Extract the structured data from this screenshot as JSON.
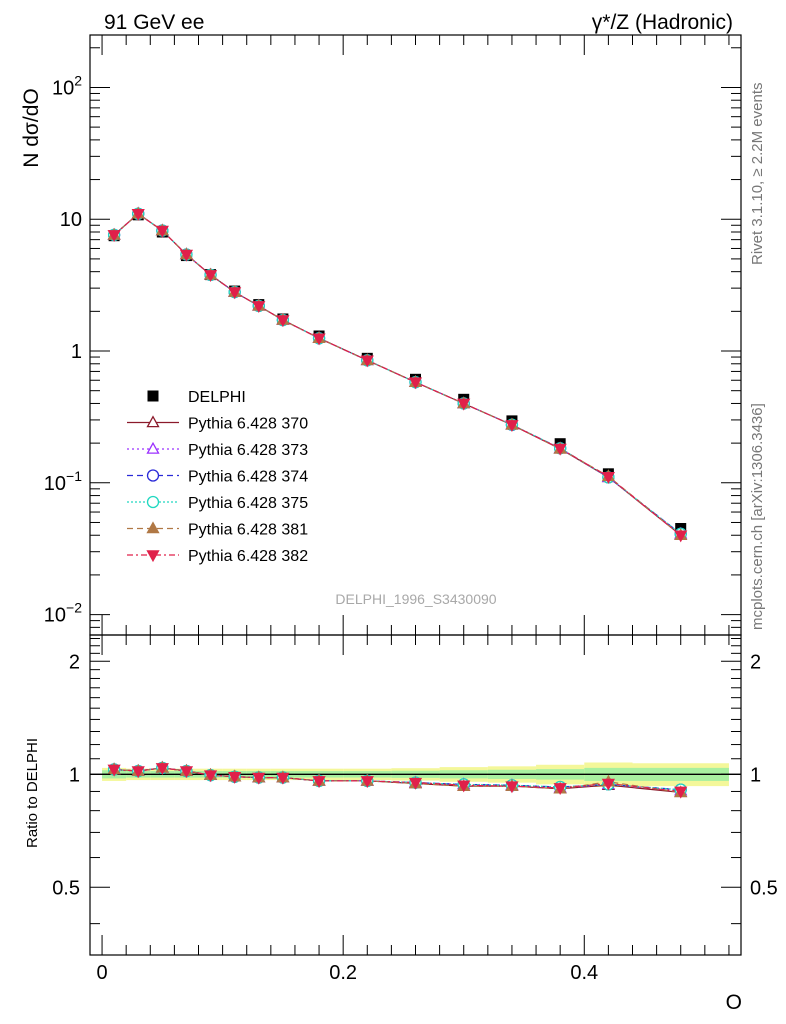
{
  "header": {
    "left_title": "91 GeV ee",
    "right_title": "γ*/Z (Hadronic)"
  },
  "side_labels": {
    "top": "Rivet 3.1.10, ≥ 2.2M events",
    "bottom": "mcplots.cern.ch [arXiv:1306.3436]"
  },
  "watermark": "DELPHI_1996_S3430090",
  "chart_data": [
    {
      "type": "scatter",
      "panel": "main",
      "ylabel": "N dσ/dO",
      "xlabel": "O",
      "xlim": [
        -0.01,
        0.53
      ],
      "ylim": [
        0.007,
        250
      ],
      "yscale": "log",
      "yticks": [
        {
          "value": 0.01,
          "label": "10",
          "exp": "−2"
        },
        {
          "value": 0.1,
          "label": "10",
          "exp": "−1"
        },
        {
          "value": 1,
          "label": "1",
          "exp": ""
        },
        {
          "value": 10,
          "label": "10",
          "exp": ""
        },
        {
          "value": 100,
          "label": "10",
          "exp": "2"
        }
      ],
      "x": [
        0.01,
        0.03,
        0.05,
        0.07,
        0.09,
        0.11,
        0.13,
        0.15,
        0.18,
        0.22,
        0.26,
        0.3,
        0.34,
        0.38,
        0.42,
        0.48
      ],
      "data": {
        "name": "DELPHI",
        "color": "#000000",
        "values": [
          7.5,
          10.8,
          8.0,
          5.3,
          3.8,
          2.85,
          2.25,
          1.75,
          1.3,
          0.88,
          0.61,
          0.43,
          0.295,
          0.198,
          0.117,
          0.045
        ]
      },
      "series": [
        {
          "name": "Pythia 6.428 370",
          "color": "#8b1a2b",
          "marker": "triangle-up-open",
          "dash": "",
          "values": [
            7.6,
            11.0,
            8.2,
            5.4,
            3.78,
            2.8,
            2.2,
            1.72,
            1.25,
            0.85,
            0.58,
            0.4,
            0.275,
            0.181,
            0.11,
            0.04
          ]
        },
        {
          "name": "Pythia 6.428 373",
          "color": "#9b30ff",
          "marker": "triangle-up-open",
          "dash": "2,3",
          "values": [
            7.6,
            11.0,
            8.2,
            5.4,
            3.78,
            2.8,
            2.2,
            1.72,
            1.25,
            0.85,
            0.58,
            0.4,
            0.276,
            0.182,
            0.11,
            0.041
          ]
        },
        {
          "name": "Pythia 6.428 374",
          "color": "#2a2ad8",
          "marker": "circle-open",
          "dash": "6,4",
          "values": [
            7.6,
            11.0,
            8.2,
            5.4,
            3.78,
            2.8,
            2.2,
            1.72,
            1.25,
            0.85,
            0.58,
            0.4,
            0.275,
            0.183,
            0.11,
            0.041
          ]
        },
        {
          "name": "Pythia 6.428 375",
          "color": "#20d8c0",
          "marker": "circle-open",
          "dash": "2,2",
          "values": [
            7.6,
            11.0,
            8.2,
            5.4,
            3.78,
            2.8,
            2.2,
            1.72,
            1.25,
            0.85,
            0.58,
            0.4,
            0.276,
            0.183,
            0.11,
            0.041
          ]
        },
        {
          "name": "Pythia 6.428 381",
          "color": "#b07845",
          "marker": "triangle-up-filled",
          "dash": "6,4",
          "values": [
            7.6,
            11.0,
            8.2,
            5.4,
            3.78,
            2.8,
            2.2,
            1.72,
            1.25,
            0.85,
            0.58,
            0.4,
            0.275,
            0.181,
            0.112,
            0.04
          ]
        },
        {
          "name": "Pythia 6.428 382",
          "color": "#e0204a",
          "marker": "triangle-down-filled",
          "dash": "6,3,2,3",
          "values": [
            7.6,
            11.0,
            8.2,
            5.4,
            3.78,
            2.8,
            2.2,
            1.72,
            1.25,
            0.85,
            0.58,
            0.4,
            0.275,
            0.182,
            0.111,
            0.04
          ]
        }
      ]
    },
    {
      "type": "line",
      "panel": "ratio",
      "ylabel": "Ratio to DELPHI",
      "xlabel": "O",
      "xlim": [
        -0.01,
        0.53
      ],
      "ylim": [
        0.33,
        2.35
      ],
      "yscale": "log",
      "yticks": [
        {
          "value": 0.5,
          "label": "0.5"
        },
        {
          "value": 1,
          "label": "1"
        },
        {
          "value": 2,
          "label": "2"
        }
      ],
      "xticks": [
        {
          "value": 0,
          "label": "0"
        },
        {
          "value": 0.2,
          "label": "0.2"
        },
        {
          "value": 0.4,
          "label": "0.4"
        }
      ],
      "band_edges": [
        0.0,
        0.02,
        0.04,
        0.06,
        0.08,
        0.1,
        0.12,
        0.14,
        0.16,
        0.2,
        0.24,
        0.28,
        0.32,
        0.36,
        0.4,
        0.44,
        0.52
      ],
      "band_inner": [
        0.025,
        0.02,
        0.02,
        0.02,
        0.02,
        0.02,
        0.02,
        0.02,
        0.02,
        0.02,
        0.022,
        0.025,
        0.028,
        0.032,
        0.04,
        0.04
      ],
      "band_outer": [
        0.04,
        0.035,
        0.035,
        0.035,
        0.035,
        0.035,
        0.035,
        0.035,
        0.035,
        0.035,
        0.038,
        0.045,
        0.05,
        0.06,
        0.075,
        0.07
      ],
      "x": [
        0.01,
        0.03,
        0.05,
        0.07,
        0.09,
        0.11,
        0.13,
        0.15,
        0.18,
        0.22,
        0.26,
        0.3,
        0.34,
        0.38,
        0.42,
        0.48
      ],
      "series": [
        {
          "name": "Pythia 6.428 370",
          "values": [
            1.03,
            1.02,
            1.04,
            1.02,
            0.995,
            0.985,
            0.98,
            0.98,
            0.96,
            0.96,
            0.945,
            0.93,
            0.93,
            0.915,
            0.935,
            0.895
          ]
        },
        {
          "name": "Pythia 6.428 373",
          "values": [
            1.03,
            1.02,
            1.04,
            1.02,
            0.995,
            0.985,
            0.98,
            0.98,
            0.96,
            0.96,
            0.95,
            0.94,
            0.935,
            0.92,
            0.94,
            0.905
          ]
        },
        {
          "name": "Pythia 6.428 374",
          "values": [
            1.03,
            1.02,
            1.04,
            1.02,
            0.995,
            0.985,
            0.98,
            0.98,
            0.96,
            0.96,
            0.95,
            0.94,
            0.935,
            0.925,
            0.94,
            0.91
          ]
        },
        {
          "name": "Pythia 6.428 375",
          "values": [
            1.03,
            1.02,
            1.04,
            1.02,
            0.995,
            0.985,
            0.98,
            0.98,
            0.96,
            0.96,
            0.95,
            0.94,
            0.935,
            0.925,
            0.94,
            0.91
          ]
        },
        {
          "name": "Pythia 6.428 381",
          "values": [
            1.03,
            1.02,
            1.04,
            1.02,
            0.995,
            0.985,
            0.98,
            0.98,
            0.96,
            0.96,
            0.945,
            0.93,
            0.93,
            0.915,
            0.955,
            0.895
          ]
        },
        {
          "name": "Pythia 6.428 382",
          "values": [
            1.03,
            1.02,
            1.04,
            1.02,
            0.995,
            0.985,
            0.98,
            0.98,
            0.96,
            0.96,
            0.95,
            0.935,
            0.93,
            0.92,
            0.945,
            0.9
          ]
        }
      ]
    }
  ]
}
